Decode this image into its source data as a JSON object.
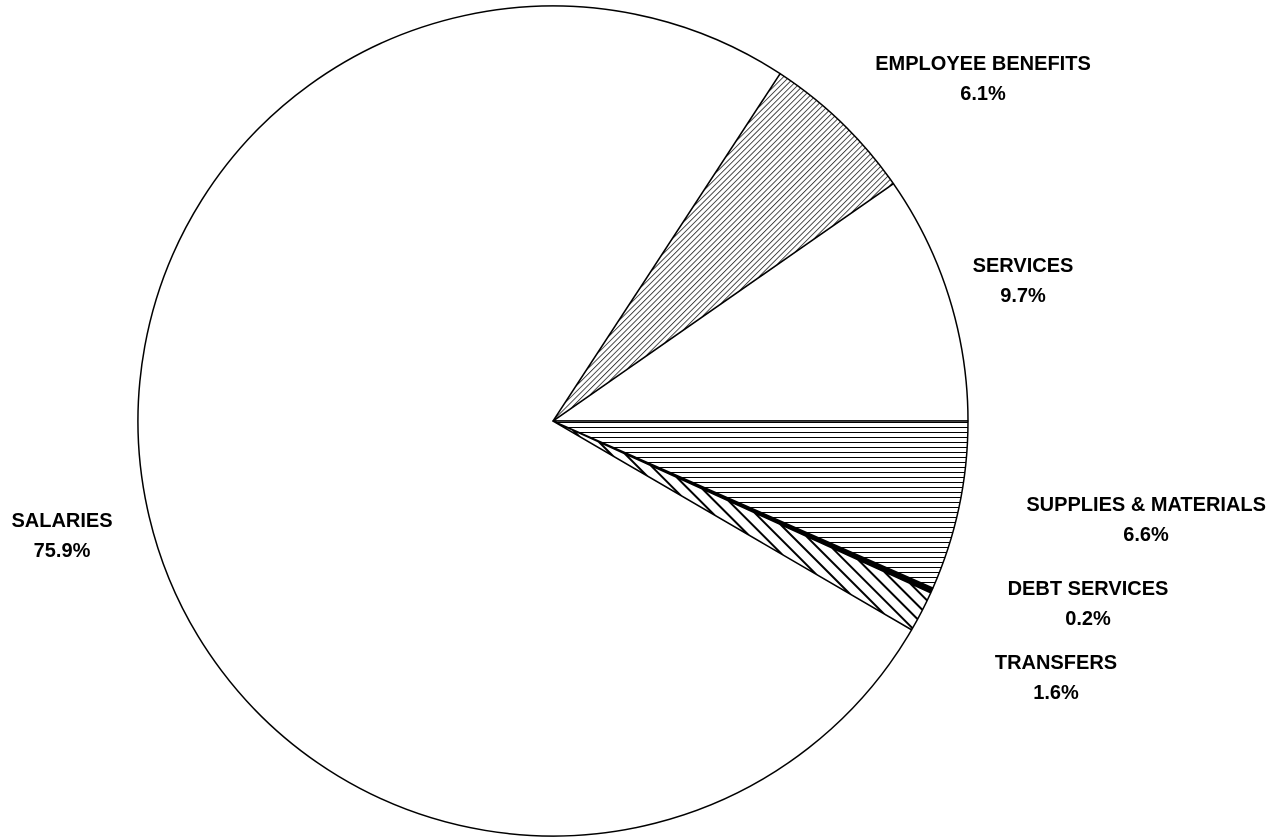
{
  "chart_data": {
    "type": "pie",
    "title": "",
    "start_angle_deg": 0,
    "direction": "counterclockwise",
    "slices": [
      {
        "label": "SERVICES",
        "value": 9.7,
        "display": "9.7%",
        "pattern": "none",
        "label_align": "center"
      },
      {
        "label": "EMPLOYEE BENEFITS",
        "value": 6.1,
        "display": "6.1%",
        "pattern": "diagonal-dense",
        "label_align": "center"
      },
      {
        "label": "SALARIES",
        "value": 75.9,
        "display": "75.9%",
        "pattern": "none",
        "label_align": "center"
      },
      {
        "label": "TRANSFERS",
        "value": 1.6,
        "display": "1.6%",
        "pattern": "diagonal-wide",
        "label_align": "center"
      },
      {
        "label": "DEBT SERVICES",
        "value": 0.2,
        "display": "0.2%",
        "pattern": "solid-black",
        "label_align": "center"
      },
      {
        "label": "SUPPLIES & MATERIALS",
        "value": 6.6,
        "display": "6.6%",
        "pattern": "horizontal-lines",
        "label_align": "right"
      }
    ],
    "colors": {
      "stroke": "#000000",
      "fill": "#ffffff",
      "text": "#000000"
    }
  }
}
